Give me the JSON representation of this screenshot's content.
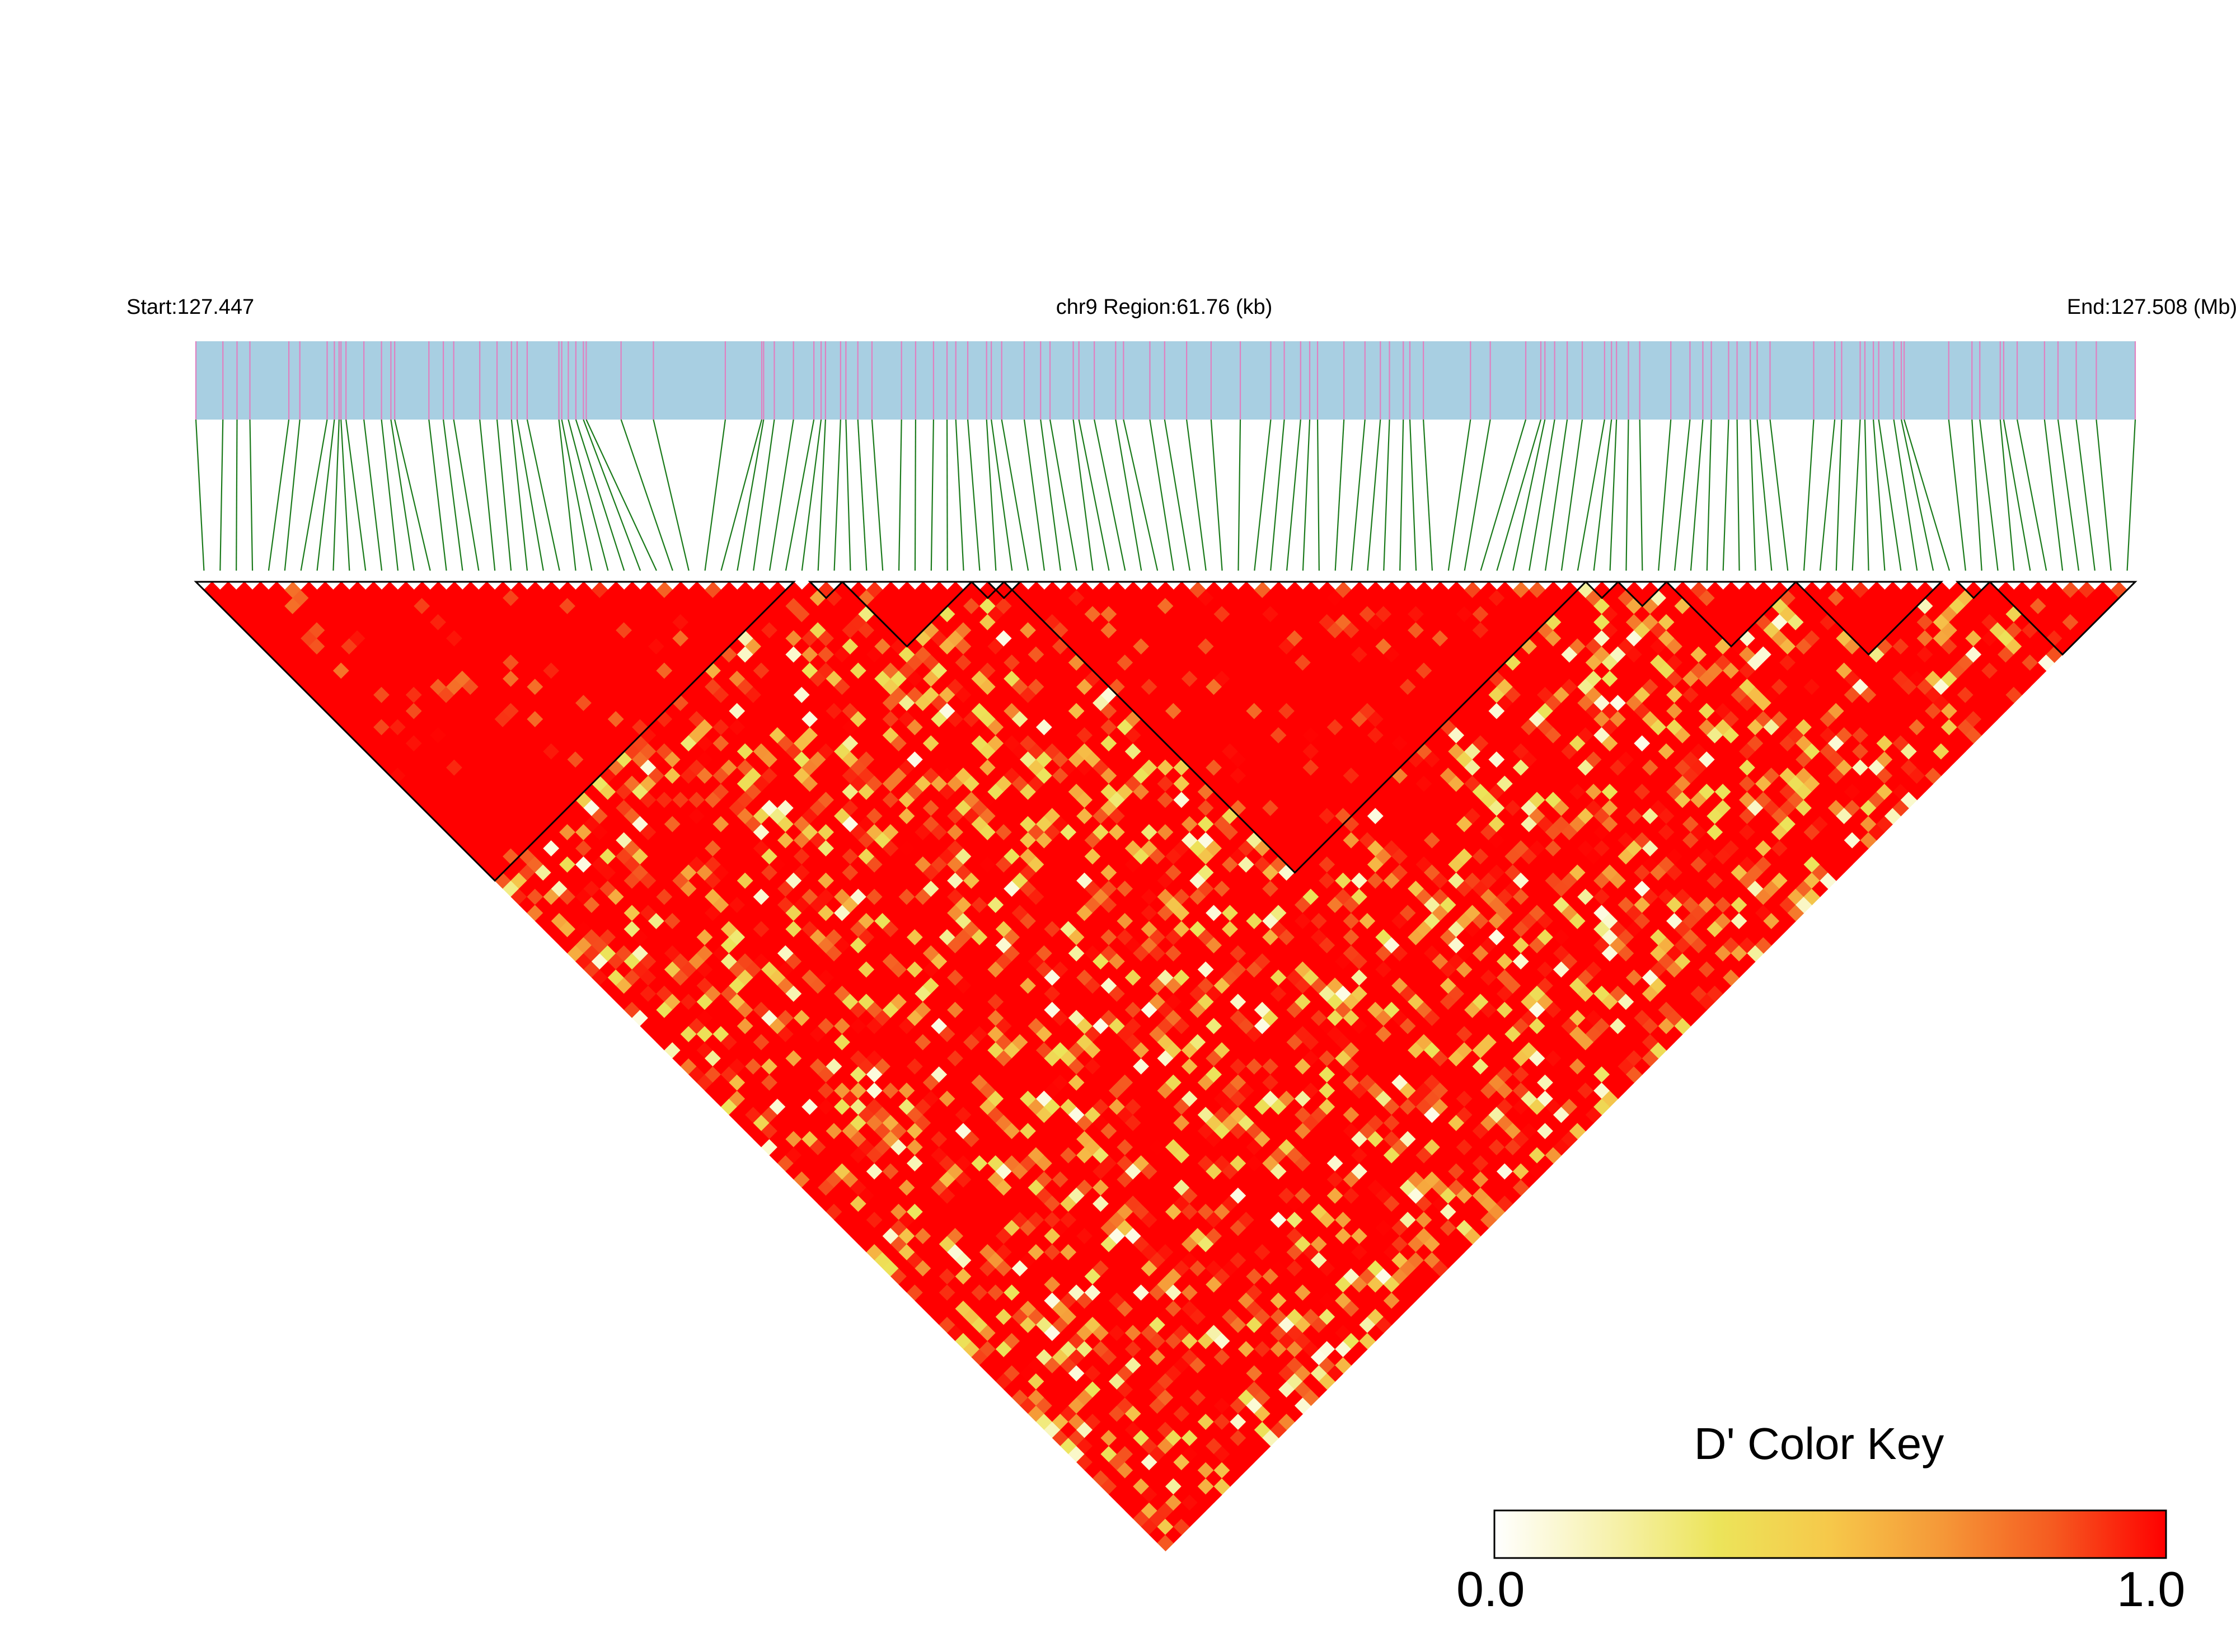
{
  "header": {
    "start_label": "Start:127.447",
    "region_label": "chr9 Region:61.76 (kb)",
    "end_label": "End:127.508 (Mb)"
  },
  "legend": {
    "title": "D' Color Key",
    "min_label": "0.0",
    "max_label": "1.0",
    "gradient_stops": [
      "#ffffff",
      "#f7f2b0",
      "#ece45a",
      "#f6c84a",
      "#f59838",
      "#f55a20",
      "#ff0000"
    ]
  },
  "colors": {
    "track_fill": "#a8cfe2",
    "snp_tick": "#e080c0",
    "connector": "#1a7a1a",
    "block_outline": "#000000",
    "ld_high": "#ff0000"
  },
  "chart_data": {
    "type": "heatmap",
    "kind": "linkage-disequilibrium triangle",
    "chromosome": "chr9",
    "start_mb": 127.447,
    "end_mb": 127.508,
    "region_kb": 61.76,
    "metric": "D'",
    "scale": [
      0.0,
      1.0
    ],
    "snp_count": 120,
    "snp_positions_kb": [
      0.0,
      0.86,
      1.31,
      1.72,
      2.96,
      3.31,
      4.18,
      4.41,
      4.56,
      4.62,
      4.78,
      5.35,
      5.91,
      6.21,
      6.33,
      7.42,
      7.88,
      8.21,
      9.04,
      9.59,
      10.05,
      10.23,
      10.55,
      11.56,
      11.65,
      11.86,
      12.1,
      12.34,
      12.43,
      13.54,
      14.57,
      16.86,
      18.02,
      18.08,
      18.42,
      19.03,
      19.68,
      19.91,
      20.05,
      20.53,
      20.7,
      21.08,
      21.53,
      22.47,
      22.92,
      23.49,
      23.92,
      24.2,
      24.58,
      25.18,
      25.33,
      25.66,
      26.38,
      26.9,
      27.2,
      27.94,
      28.12,
      28.61,
      29.29,
      29.54,
      30.38,
      30.85,
      31.55,
      32.33,
      33.26,
      34.23,
      34.66,
      35.18,
      35.47,
      35.72,
      36.56,
      37.23,
      37.72,
      38.01,
      38.45,
      38.66,
      39.09,
      40.59,
      41.22,
      42.35,
      42.83,
      42.96,
      43.27,
      43.67,
      44.15,
      44.86,
      45.08,
      45.24,
      45.62,
      45.98,
      46.97,
      47.58,
      47.99,
      48.26,
      48.81,
      49.08,
      49.5,
      49.72,
      50.13,
      51.52,
      52.19,
      52.41,
      53.0,
      53.15,
      53.42,
      53.59,
      54.07,
      54.31,
      54.4,
      55.82,
      56.56,
      56.81,
      57.46,
      57.57,
      58.0,
      58.87,
      59.3,
      59.88,
      60.52,
      61.76
    ],
    "ld_blocks": [
      {
        "first_snp": 1,
        "last_snp": 37
      },
      {
        "first_snp": 39,
        "last_snp": 40
      },
      {
        "first_snp": 41,
        "last_snp": 48
      },
      {
        "first_snp": 49,
        "last_snp": 50
      },
      {
        "first_snp": 50,
        "last_snp": 51
      },
      {
        "first_snp": 51,
        "last_snp": 86
      },
      {
        "first_snp": 87,
        "last_snp": 88
      },
      {
        "first_snp": 89,
        "last_snp": 91
      },
      {
        "first_snp": 92,
        "last_snp": 99
      },
      {
        "first_snp": 100,
        "last_snp": 108
      },
      {
        "first_snp": 110,
        "last_snp": 111
      },
      {
        "first_snp": 112,
        "last_snp": 120
      }
    ]
  }
}
